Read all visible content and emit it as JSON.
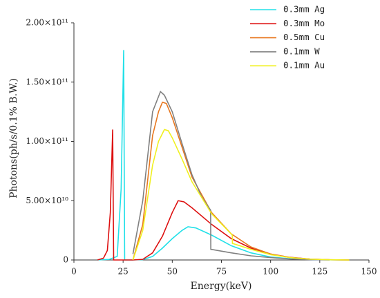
{
  "chart_data": {
    "type": "line",
    "xlabel": "Energy(keV)",
    "ylabel": "Photons(ph/s/0.1% B.W.)",
    "xlim": [
      0,
      150
    ],
    "xticks": [
      0,
      25,
      50,
      75,
      100,
      125,
      150
    ],
    "ylim": [
      0,
      200000000000
    ],
    "yticks": [
      0,
      {
        "value": 50000000000,
        "label": "5.00×10¹⁰"
      },
      {
        "value": 100000000000,
        "label": "1.00×10¹¹"
      },
      {
        "value": 150000000000,
        "label": "1.50×10¹¹"
      },
      {
        "value": 200000000000,
        "label": "2.00×10¹¹"
      }
    ],
    "legend": "upper right",
    "series": [
      {
        "name": "0.3mm Ag",
        "color": "#22e0e8",
        "x": [
          12,
          18,
          22,
          24,
          25.3,
          25.8,
          30,
          35,
          40,
          45,
          50,
          55,
          58,
          62,
          70,
          80,
          90,
          100,
          110,
          125,
          140
        ],
        "values": [
          0,
          500000000,
          3000000000,
          60000000000,
          177000000000,
          0,
          0,
          300000000,
          3000000000,
          10000000000,
          18000000000,
          25000000000,
          28000000000,
          27000000000,
          21000000000,
          12000000000,
          6000000000,
          2500000000,
          1000000000,
          200000000,
          0
        ]
      },
      {
        "name": "0.3mm Mo",
        "color": "#dd1010",
        "x": [
          12,
          15,
          17,
          18.5,
          19.7,
          20.2,
          30,
          35,
          40,
          45,
          50,
          53,
          56,
          60,
          70,
          80,
          90,
          100,
          110,
          120,
          130,
          140
        ],
        "values": [
          0,
          1500000000,
          8000000000,
          40000000000,
          110000000000,
          0,
          0,
          500000000,
          6000000000,
          20000000000,
          40000000000,
          50000000000,
          49000000000,
          44000000000,
          30000000000,
          18000000000,
          10000000000,
          5000000000,
          2200000000,
          800000000,
          200000000,
          0
        ]
      },
      {
        "name": "0.5mm Cu",
        "color": "#e87820",
        "x": [
          30,
          35,
          40,
          43,
          45,
          47,
          50,
          55,
          60,
          70,
          80,
          90,
          100,
          110,
          120,
          130,
          140
        ],
        "values": [
          0,
          30000000000,
          105000000000,
          125000000000,
          133000000000,
          132000000000,
          120000000000,
          95000000000,
          70000000000,
          40000000000,
          22000000000,
          11000000000,
          5000000000,
          2000000000,
          700000000,
          200000000,
          0
        ]
      },
      {
        "name": "0.1mm W",
        "color": "#808080",
        "x": [
          30,
          35,
          40,
          44,
          46,
          50,
          55,
          60,
          65,
          69.5,
          69.6,
          80,
          90,
          100,
          110,
          120,
          130
        ],
        "values": [
          5000000000,
          50000000000,
          125000000000,
          142000000000,
          139000000000,
          125000000000,
          98000000000,
          72000000000,
          53000000000,
          42000000000,
          9000000000,
          6000000000,
          3500000000,
          2000000000,
          800000000,
          300000000,
          0
        ]
      },
      {
        "name": "0.1mm Au",
        "color": "#f0f020",
        "x": [
          30,
          35,
          40,
          43,
          46,
          48,
          50,
          55,
          60,
          70,
          80.5,
          80.6,
          90,
          100,
          110,
          120,
          130,
          140
        ],
        "values": [
          0,
          25000000000,
          80000000000,
          100000000000,
          110000000000,
          109000000000,
          103000000000,
          85000000000,
          66000000000,
          39000000000,
          21000000000,
          14000000000,
          9000000000,
          4500000000,
          2000000000,
          700000000,
          200000000,
          0
        ]
      }
    ]
  }
}
